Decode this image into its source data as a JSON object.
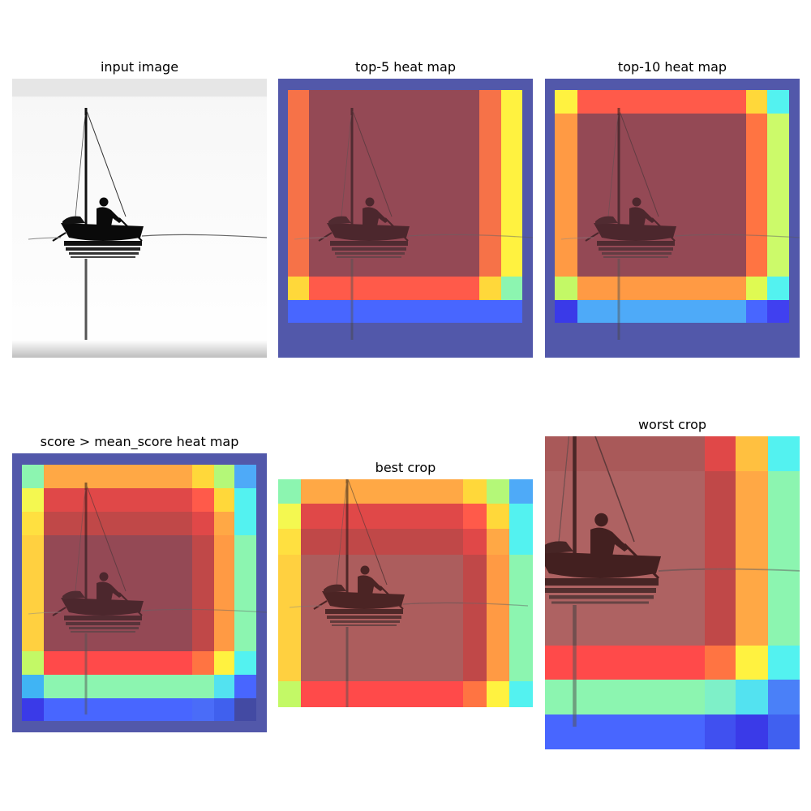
{
  "panels": {
    "input": {
      "title": "input image"
    },
    "top5": {
      "title": "top-5 heat map"
    },
    "top10": {
      "title": "top-10 heat map"
    },
    "mean": {
      "title": "score > mean_score heat map"
    },
    "best": {
      "title": "best crop"
    },
    "worst": {
      "title": "worst crop"
    }
  },
  "colors": {
    "background_dark": "#434aa3",
    "overlay_red": "#a04747",
    "orange": "#ff7442",
    "yellow": "#fff240",
    "blue": "#4866ff",
    "light_green": "#8cf5b0",
    "cyan": "#53f2f0",
    "sky_blue": "#4eaaf8"
  },
  "icons": {
    "boat": "sailboat-silhouette"
  }
}
